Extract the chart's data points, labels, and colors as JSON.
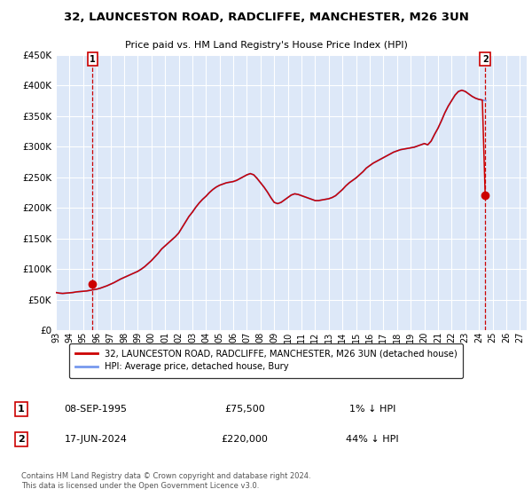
{
  "title_line1": "32, LAUNCESTON ROAD, RADCLIFFE, MANCHESTER, M26 3UN",
  "title_line2": "Price paid vs. HM Land Registry's House Price Index (HPI)",
  "bg_color": "#dde8f8",
  "grid_color": "#ffffff",
  "hpi_color": "#7799ee",
  "price_color": "#cc0000",
  "annotation1_date": 1995.69,
  "annotation1_price": 75500,
  "annotation2_date": 2024.46,
  "annotation2_price": 220000,
  "ylim": [
    0,
    450000
  ],
  "xlim_start": 1993.0,
  "xlim_end": 2027.5,
  "ytick_values": [
    0,
    50000,
    100000,
    150000,
    200000,
    250000,
    300000,
    350000,
    400000,
    450000
  ],
  "ytick_labels": [
    "£0",
    "£50K",
    "£100K",
    "£150K",
    "£200K",
    "£250K",
    "£300K",
    "£350K",
    "£400K",
    "£450K"
  ],
  "xtick_years": [
    1993,
    1994,
    1995,
    1996,
    1997,
    1998,
    1999,
    2000,
    2001,
    2002,
    2003,
    2004,
    2005,
    2006,
    2007,
    2008,
    2009,
    2010,
    2011,
    2012,
    2013,
    2014,
    2015,
    2016,
    2017,
    2018,
    2019,
    2020,
    2021,
    2022,
    2023,
    2024,
    2025,
    2026,
    2027
  ],
  "legend_label1": "32, LAUNCESTON ROAD, RADCLIFFE, MANCHESTER, M26 3UN (detached house)",
  "legend_label2": "HPI: Average price, detached house, Bury",
  "table_row1": [
    "1",
    "08-SEP-1995",
    "£75,500",
    "1% ↓ HPI"
  ],
  "table_row2": [
    "2",
    "17-JUN-2024",
    "£220,000",
    "44% ↓ HPI"
  ],
  "footnote": "Contains HM Land Registry data © Crown copyright and database right 2024.\nThis data is licensed under the Open Government Licence v3.0.",
  "hpi_data": [
    [
      1993.0,
      62000
    ],
    [
      1993.25,
      61000
    ],
    [
      1993.5,
      60500
    ],
    [
      1993.75,
      61000
    ],
    [
      1994.0,
      61500
    ],
    [
      1994.25,
      62000
    ],
    [
      1994.5,
      63000
    ],
    [
      1994.75,
      63500
    ],
    [
      1995.0,
      64000
    ],
    [
      1995.25,
      64500
    ],
    [
      1995.5,
      65500
    ],
    [
      1995.75,
      66500
    ],
    [
      1996.0,
      67500
    ],
    [
      1996.25,
      69000
    ],
    [
      1996.5,
      71000
    ],
    [
      1996.75,
      73000
    ],
    [
      1997.0,
      75500
    ],
    [
      1997.25,
      78000
    ],
    [
      1997.5,
      81000
    ],
    [
      1997.75,
      84000
    ],
    [
      1998.0,
      86500
    ],
    [
      1998.25,
      89000
    ],
    [
      1998.5,
      91500
    ],
    [
      1998.75,
      94000
    ],
    [
      1999.0,
      96500
    ],
    [
      1999.25,
      100000
    ],
    [
      1999.5,
      104000
    ],
    [
      1999.75,
      109000
    ],
    [
      2000.0,
      114000
    ],
    [
      2000.25,
      120000
    ],
    [
      2000.5,
      126000
    ],
    [
      2000.75,
      133000
    ],
    [
      2001.0,
      138000
    ],
    [
      2001.25,
      143000
    ],
    [
      2001.5,
      148000
    ],
    [
      2001.75,
      153000
    ],
    [
      2002.0,
      159000
    ],
    [
      2002.25,
      168000
    ],
    [
      2002.5,
      177000
    ],
    [
      2002.75,
      186000
    ],
    [
      2003.0,
      193000
    ],
    [
      2003.25,
      201000
    ],
    [
      2003.5,
      208000
    ],
    [
      2003.75,
      214000
    ],
    [
      2004.0,
      219000
    ],
    [
      2004.25,
      225000
    ],
    [
      2004.5,
      230000
    ],
    [
      2004.75,
      234000
    ],
    [
      2005.0,
      237000
    ],
    [
      2005.25,
      239000
    ],
    [
      2005.5,
      241000
    ],
    [
      2005.75,
      242000
    ],
    [
      2006.0,
      243000
    ],
    [
      2006.25,
      245000
    ],
    [
      2006.5,
      248000
    ],
    [
      2006.75,
      251000
    ],
    [
      2007.0,
      254000
    ],
    [
      2007.25,
      256000
    ],
    [
      2007.5,
      254000
    ],
    [
      2007.75,
      248000
    ],
    [
      2008.0,
      241000
    ],
    [
      2008.25,
      234000
    ],
    [
      2008.5,
      226000
    ],
    [
      2008.75,
      217000
    ],
    [
      2009.0,
      209000
    ],
    [
      2009.25,
      207000
    ],
    [
      2009.5,
      209000
    ],
    [
      2009.75,
      213000
    ],
    [
      2010.0,
      217000
    ],
    [
      2010.25,
      221000
    ],
    [
      2010.5,
      223000
    ],
    [
      2010.75,
      222000
    ],
    [
      2011.0,
      220000
    ],
    [
      2011.25,
      218000
    ],
    [
      2011.5,
      216000
    ],
    [
      2011.75,
      214000
    ],
    [
      2012.0,
      212000
    ],
    [
      2012.25,
      212000
    ],
    [
      2012.5,
      213000
    ],
    [
      2012.75,
      214000
    ],
    [
      2013.0,
      215000
    ],
    [
      2013.25,
      217000
    ],
    [
      2013.5,
      220000
    ],
    [
      2013.75,
      225000
    ],
    [
      2014.0,
      230000
    ],
    [
      2014.25,
      236000
    ],
    [
      2014.5,
      241000
    ],
    [
      2014.75,
      245000
    ],
    [
      2015.0,
      249000
    ],
    [
      2015.25,
      254000
    ],
    [
      2015.5,
      259000
    ],
    [
      2015.75,
      265000
    ],
    [
      2016.0,
      269000
    ],
    [
      2016.25,
      273000
    ],
    [
      2016.5,
      276000
    ],
    [
      2016.75,
      279000
    ],
    [
      2017.0,
      282000
    ],
    [
      2017.25,
      285000
    ],
    [
      2017.5,
      288000
    ],
    [
      2017.75,
      291000
    ],
    [
      2018.0,
      293000
    ],
    [
      2018.25,
      295000
    ],
    [
      2018.5,
      296000
    ],
    [
      2018.75,
      297000
    ],
    [
      2019.0,
      298000
    ],
    [
      2019.25,
      299000
    ],
    [
      2019.5,
      301000
    ],
    [
      2019.75,
      303000
    ],
    [
      2020.0,
      305000
    ],
    [
      2020.25,
      303000
    ],
    [
      2020.5,
      309000
    ],
    [
      2020.75,
      320000
    ],
    [
      2021.0,
      330000
    ],
    [
      2021.25,
      342000
    ],
    [
      2021.5,
      355000
    ],
    [
      2021.75,
      366000
    ],
    [
      2022.0,
      375000
    ],
    [
      2022.25,
      384000
    ],
    [
      2022.5,
      390000
    ],
    [
      2022.75,
      392000
    ],
    [
      2023.0,
      390000
    ],
    [
      2023.25,
      386000
    ],
    [
      2023.5,
      382000
    ],
    [
      2023.75,
      379000
    ],
    [
      2024.0,
      377000
    ],
    [
      2024.25,
      376000
    ],
    [
      2024.5,
      375000
    ]
  ],
  "price_data": [
    [
      1993.0,
      62000
    ],
    [
      1993.25,
      61000
    ],
    [
      1993.5,
      60500
    ],
    [
      1993.75,
      61000
    ],
    [
      1994.0,
      61500
    ],
    [
      1994.25,
      62000
    ],
    [
      1994.5,
      63000
    ],
    [
      1994.75,
      63500
    ],
    [
      1995.0,
      64000
    ],
    [
      1995.25,
      64500
    ],
    [
      1995.5,
      65500
    ],
    [
      1995.75,
      66500
    ],
    [
      1996.0,
      67500
    ],
    [
      1996.25,
      69000
    ],
    [
      1996.5,
      71000
    ],
    [
      1996.75,
      73000
    ],
    [
      1997.0,
      75500
    ],
    [
      1997.25,
      78000
    ],
    [
      1997.5,
      81000
    ],
    [
      1997.75,
      84000
    ],
    [
      1998.0,
      86500
    ],
    [
      1998.25,
      89000
    ],
    [
      1998.5,
      91500
    ],
    [
      1998.75,
      94000
    ],
    [
      1999.0,
      96500
    ],
    [
      1999.25,
      100000
    ],
    [
      1999.5,
      104000
    ],
    [
      1999.75,
      109000
    ],
    [
      2000.0,
      114000
    ],
    [
      2000.25,
      120000
    ],
    [
      2000.5,
      126000
    ],
    [
      2000.75,
      133000
    ],
    [
      2001.0,
      138000
    ],
    [
      2001.25,
      143000
    ],
    [
      2001.5,
      148000
    ],
    [
      2001.75,
      153000
    ],
    [
      2002.0,
      159000
    ],
    [
      2002.25,
      168000
    ],
    [
      2002.5,
      177000
    ],
    [
      2002.75,
      186000
    ],
    [
      2003.0,
      193000
    ],
    [
      2003.25,
      201000
    ],
    [
      2003.5,
      208000
    ],
    [
      2003.75,
      214000
    ],
    [
      2004.0,
      219000
    ],
    [
      2004.25,
      225000
    ],
    [
      2004.5,
      230000
    ],
    [
      2004.75,
      234000
    ],
    [
      2005.0,
      237000
    ],
    [
      2005.25,
      239000
    ],
    [
      2005.5,
      241000
    ],
    [
      2005.75,
      242000
    ],
    [
      2006.0,
      243000
    ],
    [
      2006.25,
      245000
    ],
    [
      2006.5,
      248000
    ],
    [
      2006.75,
      251000
    ],
    [
      2007.0,
      254000
    ],
    [
      2007.25,
      256000
    ],
    [
      2007.5,
      254000
    ],
    [
      2007.75,
      248000
    ],
    [
      2008.0,
      241000
    ],
    [
      2008.25,
      234000
    ],
    [
      2008.5,
      226000
    ],
    [
      2008.75,
      217000
    ],
    [
      2009.0,
      209000
    ],
    [
      2009.25,
      207000
    ],
    [
      2009.5,
      209000
    ],
    [
      2009.75,
      213000
    ],
    [
      2010.0,
      217000
    ],
    [
      2010.25,
      221000
    ],
    [
      2010.5,
      223000
    ],
    [
      2010.75,
      222000
    ],
    [
      2011.0,
      220000
    ],
    [
      2011.25,
      218000
    ],
    [
      2011.5,
      216000
    ],
    [
      2011.75,
      214000
    ],
    [
      2012.0,
      212000
    ],
    [
      2012.25,
      212000
    ],
    [
      2012.5,
      213000
    ],
    [
      2012.75,
      214000
    ],
    [
      2013.0,
      215000
    ],
    [
      2013.25,
      217000
    ],
    [
      2013.5,
      220000
    ],
    [
      2013.75,
      225000
    ],
    [
      2014.0,
      230000
    ],
    [
      2014.25,
      236000
    ],
    [
      2014.5,
      241000
    ],
    [
      2014.75,
      245000
    ],
    [
      2015.0,
      249000
    ],
    [
      2015.25,
      254000
    ],
    [
      2015.5,
      259000
    ],
    [
      2015.75,
      265000
    ],
    [
      2016.0,
      269000
    ],
    [
      2016.25,
      273000
    ],
    [
      2016.5,
      276000
    ],
    [
      2016.75,
      279000
    ],
    [
      2017.0,
      282000
    ],
    [
      2017.25,
      285000
    ],
    [
      2017.5,
      288000
    ],
    [
      2017.75,
      291000
    ],
    [
      2018.0,
      293000
    ],
    [
      2018.25,
      295000
    ],
    [
      2018.5,
      296000
    ],
    [
      2018.75,
      297000
    ],
    [
      2019.0,
      298000
    ],
    [
      2019.25,
      299000
    ],
    [
      2019.5,
      301000
    ],
    [
      2019.75,
      303000
    ],
    [
      2020.0,
      305000
    ],
    [
      2020.25,
      303000
    ],
    [
      2020.5,
      309000
    ],
    [
      2020.75,
      320000
    ],
    [
      2021.0,
      330000
    ],
    [
      2021.25,
      342000
    ],
    [
      2021.5,
      355000
    ],
    [
      2021.75,
      366000
    ],
    [
      2022.0,
      375000
    ],
    [
      2022.25,
      384000
    ],
    [
      2022.5,
      390000
    ],
    [
      2022.75,
      392000
    ],
    [
      2023.0,
      390000
    ],
    [
      2023.25,
      386000
    ],
    [
      2023.5,
      382000
    ],
    [
      2023.75,
      379000
    ],
    [
      2024.0,
      377000
    ],
    [
      2024.25,
      376000
    ],
    [
      2024.46,
      220000
    ]
  ]
}
